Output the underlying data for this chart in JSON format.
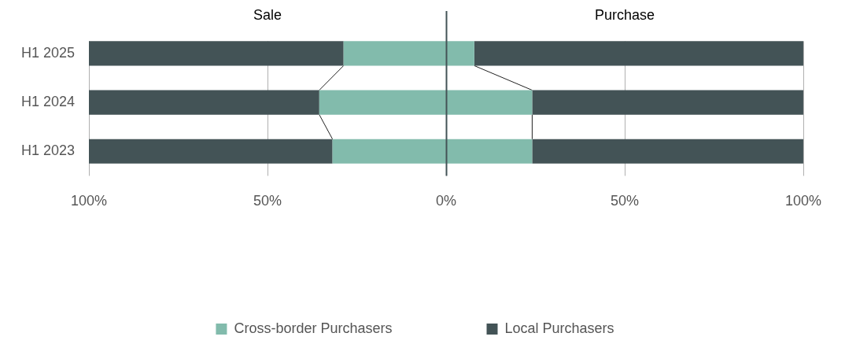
{
  "chart_data": {
    "type": "bar",
    "orientation": "horizontal",
    "stacked": true,
    "categories": [
      "H1 2025",
      "H1 2024",
      "H1 2023"
    ],
    "series": [
      {
        "name": "Cross-border Purchasers",
        "color": "#82bbac",
        "values": [
          -28.7,
          -35.5,
          -31.8
        ]
      },
      {
        "color": "#82bbac",
        "values": [
          7.9,
          24.1,
          24.1
        ]
      },
      {
        "name": "Local Purchasers",
        "color": "#435356",
        "values": [
          -71.3,
          -64.5,
          -68.2
        ]
      },
      {
        "color": "#435356",
        "values": [
          92.1,
          75.9,
          75.9
        ]
      }
    ],
    "xlim": [
      -100,
      100
    ],
    "xticks": [
      {
        "value": -100,
        "label": "100%"
      },
      {
        "value": -50,
        "label": "50%"
      },
      {
        "value": 0,
        "label": "0%"
      },
      {
        "value": 50,
        "label": "50%"
      },
      {
        "value": 100,
        "label": "100%"
      }
    ],
    "ref_lines": [
      {
        "axis": "x",
        "value": 0,
        "color": "#435356"
      }
    ],
    "annotations": [
      "Sale",
      "Purchase"
    ],
    "grid": "x",
    "legend": "bottom"
  }
}
